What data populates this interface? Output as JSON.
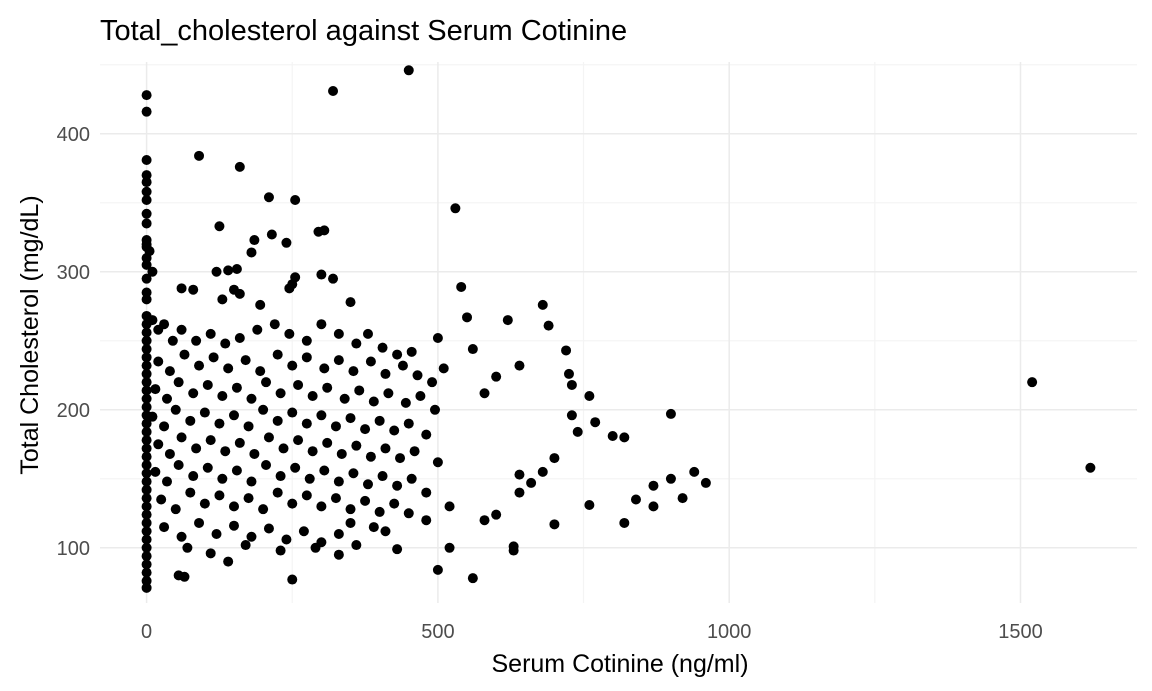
{
  "chart_data": {
    "type": "scatter",
    "title": "Total_cholesterol against Serum Cotinine",
    "xlabel": "Serum Cotinine (ng/ml)",
    "ylabel": "Total Cholesterol (mg/dL)",
    "xlim": [
      -80,
      1700
    ],
    "ylim": [
      60,
      452
    ],
    "x_ticks": [
      0,
      500,
      1000,
      1500
    ],
    "x_tick_labels": [
      "0",
      "500",
      "1000",
      "1500"
    ],
    "y_ticks": [
      100,
      200,
      300,
      400
    ],
    "y_tick_labels": [
      "100",
      "200",
      "300",
      "400"
    ],
    "grid": true,
    "legend": "none",
    "point_color": "#000000",
    "points": [
      [
        450,
        446
      ],
      [
        320,
        431
      ],
      [
        0,
        428
      ],
      [
        0,
        416
      ],
      [
        90,
        384
      ],
      [
        0,
        381
      ],
      [
        160,
        376
      ],
      [
        0,
        370
      ],
      [
        0,
        365
      ],
      [
        0,
        358
      ],
      [
        210,
        354
      ],
      [
        255,
        352
      ],
      [
        0,
        352
      ],
      [
        530,
        346
      ],
      [
        0,
        342
      ],
      [
        0,
        335
      ],
      [
        125,
        333
      ],
      [
        305,
        330
      ],
      [
        295,
        329
      ],
      [
        215,
        327
      ],
      [
        185,
        323
      ],
      [
        0,
        323
      ],
      [
        0,
        320
      ],
      [
        240,
        321
      ],
      [
        0,
        318
      ],
      [
        5,
        315
      ],
      [
        180,
        314
      ],
      [
        0,
        310
      ],
      [
        0,
        305
      ],
      [
        10,
        300
      ],
      [
        120,
        300
      ],
      [
        140,
        301
      ],
      [
        155,
        302
      ],
      [
        255,
        296
      ],
      [
        300,
        298
      ],
      [
        320,
        295
      ],
      [
        0,
        295
      ],
      [
        250,
        291
      ],
      [
        540,
        289
      ],
      [
        245,
        288
      ],
      [
        60,
        288
      ],
      [
        80,
        287
      ],
      [
        0,
        285
      ],
      [
        150,
        287
      ],
      [
        160,
        284
      ],
      [
        130,
        280
      ],
      [
        0,
        280
      ],
      [
        350,
        278
      ],
      [
        195,
        276
      ],
      [
        680,
        276
      ],
      [
        550,
        267
      ],
      [
        620,
        265
      ],
      [
        690,
        261
      ],
      [
        500,
        252
      ],
      [
        560,
        244
      ],
      [
        720,
        243
      ],
      [
        0,
        268
      ],
      [
        0,
        262
      ],
      [
        0,
        256
      ],
      [
        0,
        250
      ],
      [
        0,
        244
      ],
      [
        0,
        238
      ],
      [
        0,
        232
      ],
      [
        0,
        226
      ],
      [
        0,
        220
      ],
      [
        0,
        214
      ],
      [
        0,
        208
      ],
      [
        0,
        202
      ],
      [
        0,
        196
      ],
      [
        0,
        190
      ],
      [
        0,
        184
      ],
      [
        0,
        178
      ],
      [
        0,
        172
      ],
      [
        0,
        166
      ],
      [
        0,
        160
      ],
      [
        0,
        154
      ],
      [
        0,
        148
      ],
      [
        0,
        142
      ],
      [
        0,
        136
      ],
      [
        0,
        130
      ],
      [
        0,
        124
      ],
      [
        0,
        118
      ],
      [
        0,
        112
      ],
      [
        0,
        106
      ],
      [
        0,
        100
      ],
      [
        0,
        94
      ],
      [
        0,
        88
      ],
      [
        0,
        82
      ],
      [
        0,
        76
      ],
      [
        0,
        71
      ],
      [
        55,
        80
      ],
      [
        65,
        79
      ],
      [
        250,
        77
      ],
      [
        560,
        78
      ],
      [
        500,
        84
      ],
      [
        140,
        90
      ],
      [
        330,
        95
      ],
      [
        630,
        98
      ],
      [
        630,
        101
      ],
      [
        520,
        100
      ],
      [
        430,
        99
      ],
      [
        725,
        226
      ],
      [
        730,
        218
      ],
      [
        760,
        210
      ],
      [
        580,
        212
      ],
      [
        600,
        224
      ],
      [
        640,
        232
      ],
      [
        700,
        165
      ],
      [
        730,
        196
      ],
      [
        740,
        184
      ],
      [
        770,
        191
      ],
      [
        800,
        181
      ],
      [
        820,
        180
      ],
      [
        900,
        197
      ],
      [
        760,
        131
      ],
      [
        820,
        118
      ],
      [
        840,
        135
      ],
      [
        870,
        130
      ],
      [
        870,
        145
      ],
      [
        900,
        150
      ],
      [
        940,
        155
      ],
      [
        920,
        136
      ],
      [
        960,
        147
      ],
      [
        700,
        117
      ],
      [
        660,
        147
      ],
      [
        640,
        153
      ],
      [
        680,
        155
      ],
      [
        580,
        120
      ],
      [
        600,
        124
      ],
      [
        640,
        140
      ],
      [
        1520,
        220
      ],
      [
        1620,
        158
      ],
      [
        10,
        265
      ],
      [
        20,
        258
      ],
      [
        30,
        262
      ],
      [
        45,
        250
      ],
      [
        60,
        258
      ],
      [
        85,
        250
      ],
      [
        110,
        255
      ],
      [
        135,
        248
      ],
      [
        160,
        252
      ],
      [
        190,
        258
      ],
      [
        220,
        262
      ],
      [
        245,
        255
      ],
      [
        275,
        250
      ],
      [
        300,
        262
      ],
      [
        330,
        255
      ],
      [
        360,
        248
      ],
      [
        380,
        255
      ],
      [
        405,
        245
      ],
      [
        430,
        240
      ],
      [
        455,
        242
      ],
      [
        20,
        235
      ],
      [
        40,
        228
      ],
      [
        65,
        240
      ],
      [
        90,
        232
      ],
      [
        115,
        238
      ],
      [
        140,
        230
      ],
      [
        170,
        236
      ],
      [
        195,
        228
      ],
      [
        225,
        240
      ],
      [
        250,
        232
      ],
      [
        275,
        238
      ],
      [
        305,
        230
      ],
      [
        330,
        236
      ],
      [
        355,
        228
      ],
      [
        385,
        235
      ],
      [
        410,
        226
      ],
      [
        440,
        232
      ],
      [
        465,
        225
      ],
      [
        490,
        220
      ],
      [
        510,
        230
      ],
      [
        15,
        215
      ],
      [
        35,
        208
      ],
      [
        55,
        220
      ],
      [
        80,
        212
      ],
      [
        105,
        218
      ],
      [
        130,
        210
      ],
      [
        155,
        216
      ],
      [
        180,
        208
      ],
      [
        205,
        220
      ],
      [
        230,
        212
      ],
      [
        260,
        218
      ],
      [
        285,
        210
      ],
      [
        310,
        216
      ],
      [
        340,
        208
      ],
      [
        365,
        214
      ],
      [
        390,
        206
      ],
      [
        415,
        212
      ],
      [
        445,
        205
      ],
      [
        470,
        210
      ],
      [
        495,
        200
      ],
      [
        10,
        195
      ],
      [
        30,
        188
      ],
      [
        50,
        200
      ],
      [
        75,
        192
      ],
      [
        100,
        198
      ],
      [
        125,
        190
      ],
      [
        150,
        196
      ],
      [
        175,
        188
      ],
      [
        200,
        200
      ],
      [
        225,
        192
      ],
      [
        250,
        198
      ],
      [
        275,
        190
      ],
      [
        300,
        196
      ],
      [
        325,
        188
      ],
      [
        350,
        194
      ],
      [
        375,
        186
      ],
      [
        400,
        192
      ],
      [
        425,
        185
      ],
      [
        450,
        190
      ],
      [
        480,
        182
      ],
      [
        20,
        175
      ],
      [
        40,
        168
      ],
      [
        60,
        180
      ],
      [
        85,
        172
      ],
      [
        110,
        178
      ],
      [
        135,
        170
      ],
      [
        160,
        176
      ],
      [
        185,
        168
      ],
      [
        210,
        180
      ],
      [
        235,
        172
      ],
      [
        260,
        178
      ],
      [
        285,
        170
      ],
      [
        310,
        176
      ],
      [
        335,
        168
      ],
      [
        360,
        174
      ],
      [
        385,
        166
      ],
      [
        410,
        172
      ],
      [
        435,
        165
      ],
      [
        460,
        170
      ],
      [
        500,
        162
      ],
      [
        15,
        155
      ],
      [
        35,
        148
      ],
      [
        55,
        160
      ],
      [
        80,
        152
      ],
      [
        105,
        158
      ],
      [
        130,
        150
      ],
      [
        155,
        156
      ],
      [
        180,
        148
      ],
      [
        205,
        160
      ],
      [
        230,
        152
      ],
      [
        255,
        158
      ],
      [
        280,
        150
      ],
      [
        305,
        156
      ],
      [
        330,
        148
      ],
      [
        355,
        154
      ],
      [
        380,
        146
      ],
      [
        405,
        152
      ],
      [
        430,
        145
      ],
      [
        455,
        150
      ],
      [
        480,
        140
      ],
      [
        25,
        135
      ],
      [
        50,
        128
      ],
      [
        75,
        140
      ],
      [
        100,
        132
      ],
      [
        125,
        138
      ],
      [
        150,
        130
      ],
      [
        175,
        136
      ],
      [
        200,
        128
      ],
      [
        225,
        140
      ],
      [
        250,
        132
      ],
      [
        275,
        138
      ],
      [
        300,
        130
      ],
      [
        325,
        136
      ],
      [
        350,
        128
      ],
      [
        375,
        134
      ],
      [
        400,
        126
      ],
      [
        425,
        132
      ],
      [
        450,
        125
      ],
      [
        480,
        120
      ],
      [
        520,
        130
      ],
      [
        30,
        115
      ],
      [
        60,
        108
      ],
      [
        90,
        118
      ],
      [
        120,
        110
      ],
      [
        150,
        116
      ],
      [
        180,
        108
      ],
      [
        210,
        114
      ],
      [
        240,
        106
      ],
      [
        270,
        112
      ],
      [
        300,
        104
      ],
      [
        330,
        110
      ],
      [
        360,
        102
      ],
      [
        390,
        115
      ],
      [
        70,
        100
      ],
      [
        110,
        96
      ],
      [
        170,
        102
      ],
      [
        230,
        98
      ],
      [
        290,
        100
      ],
      [
        350,
        118
      ],
      [
        410,
        112
      ]
    ]
  }
}
